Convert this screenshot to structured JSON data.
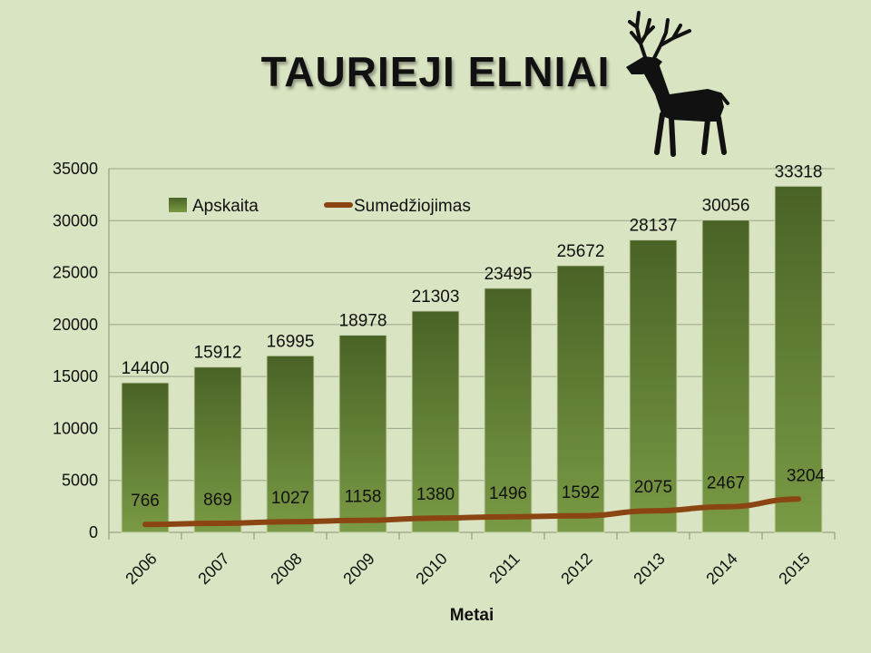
{
  "chart_data": {
    "type": "bar",
    "title": "TAURIEJI ELNIAI",
    "xlabel": "Metai",
    "ylabel": "",
    "categories": [
      "2006",
      "2007",
      "2008",
      "2009",
      "2010",
      "2011",
      "2012",
      "2013",
      "2014",
      "2015"
    ],
    "series": [
      {
        "name": "Apskaita",
        "type": "bar",
        "color": "#4f6d2a",
        "values": [
          14400,
          15912,
          16995,
          18978,
          21303,
          23495,
          25672,
          28137,
          30056,
          33318
        ]
      },
      {
        "name": "Sumedžiojimas",
        "type": "line",
        "color": "#8b4513",
        "values": [
          766,
          869,
          1027,
          1158,
          1380,
          1496,
          1592,
          2075,
          2467,
          3204
        ]
      }
    ],
    "ylim": [
      0,
      35000
    ],
    "yticks": [
      0,
      5000,
      10000,
      15000,
      20000,
      25000,
      30000,
      35000
    ],
    "grid": true,
    "legend_position": "top-left"
  },
  "icons": {
    "decoration": "deer-icon"
  },
  "colors": {
    "background": "#d9e4c2",
    "bar_top": "#4a6326",
    "bar_bottom": "#7a9a45",
    "line": "#8b4513"
  }
}
